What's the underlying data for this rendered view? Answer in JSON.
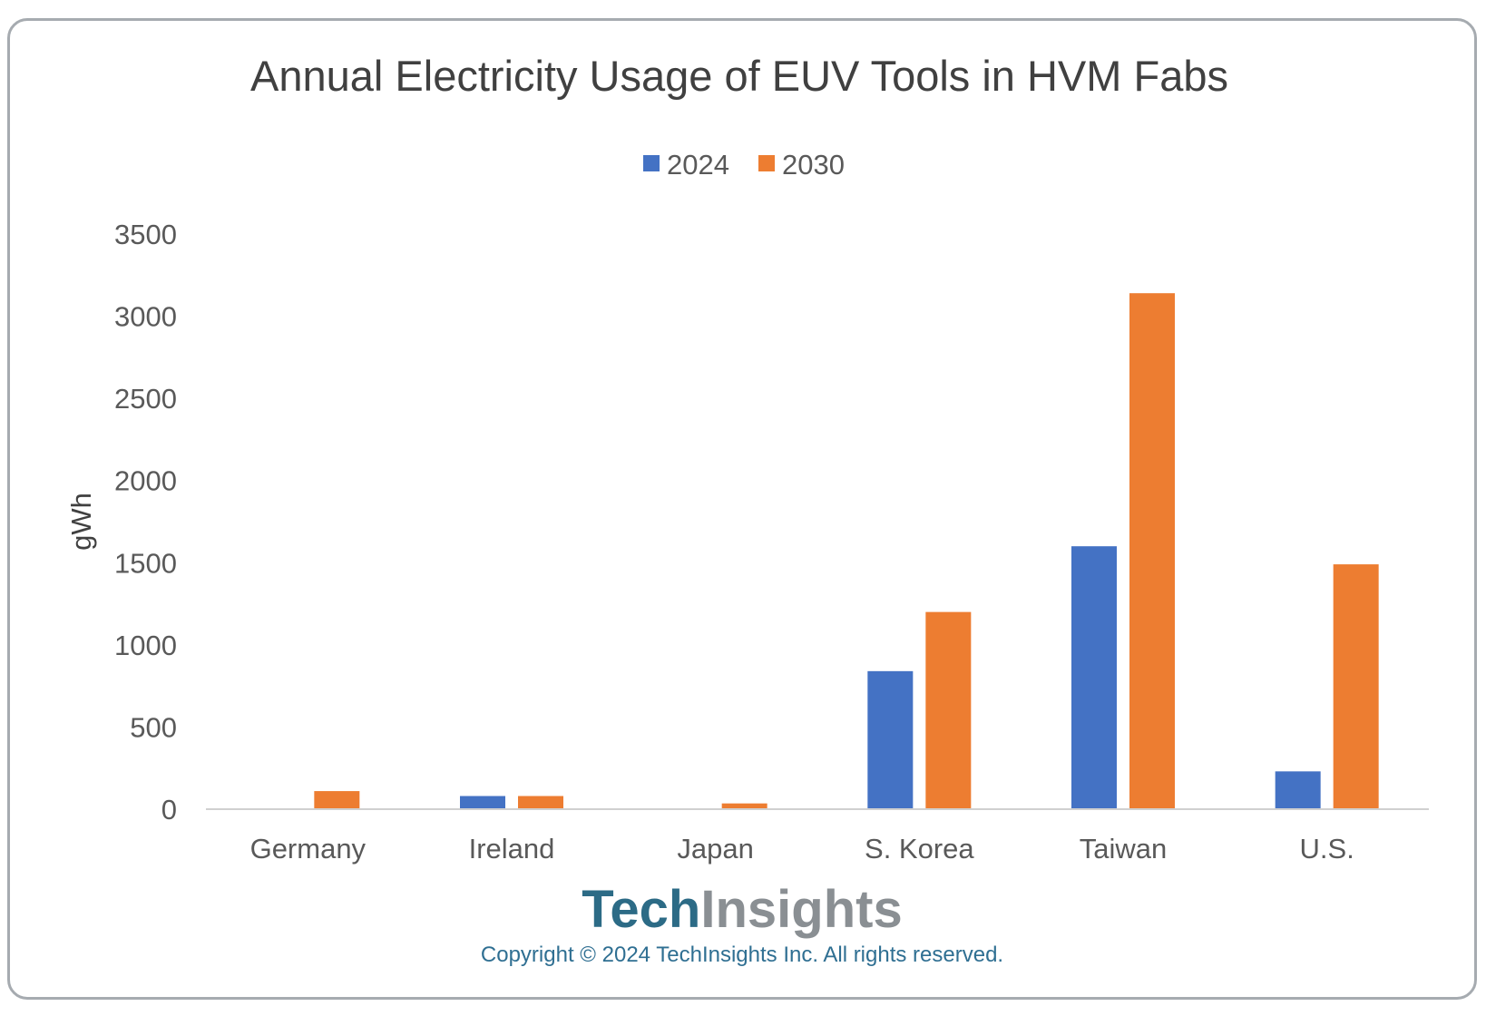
{
  "chart_data": {
    "type": "bar",
    "title": "Annual Electricity Usage of EUV Tools in HVM Fabs",
    "ylabel": "gWh",
    "xlabel": "",
    "categories": [
      "Germany",
      "Ireland",
      "Japan",
      "S. Korea",
      "Taiwan",
      "U.S."
    ],
    "series": [
      {
        "name": "2024",
        "color": "#4472c4",
        "values": [
          0,
          80,
          0,
          840,
          1600,
          230
        ]
      },
      {
        "name": "2030",
        "color": "#ed7d31",
        "values": [
          110,
          80,
          35,
          1200,
          3140,
          1490
        ]
      }
    ],
    "ylim": [
      0,
      3500
    ],
    "yticks": [
      0,
      500,
      1000,
      1500,
      2000,
      2500,
      3000,
      3500
    ],
    "grid": false,
    "legend_position": "top"
  },
  "branding": {
    "logo_part1": "Tech",
    "logo_part2": "Insights",
    "copyright": "Copyright © 2024 TechInsights Inc.  All rights reserved."
  }
}
